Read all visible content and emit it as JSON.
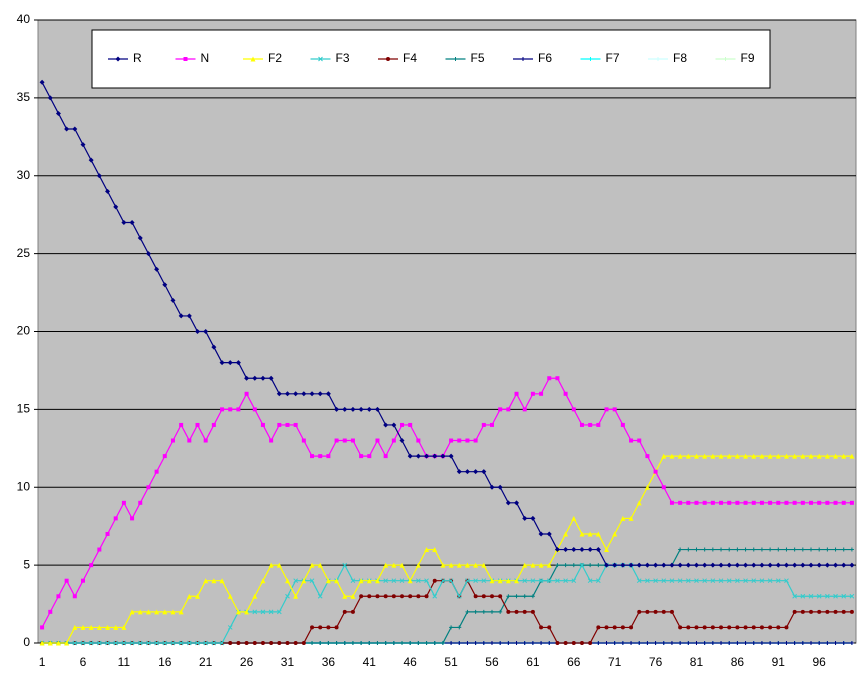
{
  "chart_data": {
    "type": "line",
    "categories": [
      "1",
      null,
      null,
      null,
      null,
      "6",
      null,
      null,
      null,
      null,
      "11",
      null,
      null,
      null,
      null,
      "16",
      null,
      null,
      null,
      null,
      "21",
      null,
      null,
      null,
      null,
      "26",
      null,
      null,
      null,
      null,
      "31",
      null,
      null,
      null,
      null,
      "36",
      null,
      null,
      null,
      null,
      "41",
      null,
      null,
      null,
      null,
      "46",
      null,
      null,
      null,
      null,
      "51",
      null,
      null,
      null,
      null,
      "56",
      null,
      null,
      null,
      null,
      "61",
      null,
      null,
      null,
      null,
      "66",
      null,
      null,
      null,
      null,
      "71",
      null,
      null,
      null,
      null,
      "76",
      null,
      null,
      null,
      null,
      "81",
      null,
      null,
      null,
      null,
      "86",
      null,
      null,
      null,
      null,
      "91",
      null,
      null,
      null,
      null,
      "96",
      null,
      null,
      null,
      null
    ],
    "ylim": [
      0,
      40
    ],
    "yticks": [
      0,
      5,
      10,
      15,
      20,
      25,
      30,
      35,
      40
    ],
    "grid": true,
    "series": [
      {
        "name": "R",
        "color": "#000080",
        "marker": "diamond",
        "values": [
          36,
          35,
          34,
          33,
          33,
          32,
          31,
          30,
          29,
          28,
          27,
          27,
          26,
          25,
          24,
          23,
          22,
          21,
          21,
          20,
          20,
          19,
          18,
          18,
          18,
          17,
          17,
          17,
          17,
          16,
          16,
          16,
          16,
          16,
          16,
          16,
          15,
          15,
          15,
          15,
          15,
          15,
          14,
          14,
          13,
          12,
          12,
          12,
          12,
          12,
          12,
          11,
          11,
          11,
          11,
          10,
          10,
          9,
          9,
          8,
          8,
          7,
          7,
          6,
          6,
          6,
          6,
          6,
          6,
          5,
          5,
          5,
          5,
          5,
          5,
          5,
          5,
          5,
          5,
          5,
          5,
          5,
          5,
          5,
          5,
          5,
          5,
          5,
          5,
          5,
          5,
          5,
          5,
          5,
          5,
          5,
          5,
          5,
          5,
          5
        ]
      },
      {
        "name": "N",
        "color": "#ff00ff",
        "marker": "square",
        "values": [
          1,
          2,
          3,
          4,
          3,
          4,
          5,
          6,
          7,
          8,
          9,
          8,
          9,
          10,
          11,
          12,
          13,
          14,
          13,
          14,
          13,
          14,
          15,
          15,
          15,
          16,
          15,
          14,
          13,
          14,
          14,
          14,
          13,
          12,
          12,
          12,
          13,
          13,
          13,
          12,
          12,
          13,
          12,
          13,
          14,
          14,
          13,
          12,
          12,
          12,
          13,
          13,
          13,
          13,
          14,
          14,
          15,
          15,
          16,
          15,
          16,
          16,
          17,
          17,
          16,
          15,
          14,
          14,
          14,
          15,
          15,
          14,
          13,
          13,
          12,
          11,
          10,
          9,
          9,
          9,
          9,
          9,
          9,
          9,
          9,
          9,
          9,
          9,
          9,
          9,
          9,
          9,
          9,
          9,
          9,
          9,
          9,
          9,
          9,
          9
        ]
      },
      {
        "name": "F2",
        "color": "#ffff00",
        "marker": "triangle",
        "values": [
          0,
          0,
          0,
          0,
          1,
          1,
          1,
          1,
          1,
          1,
          1,
          2,
          2,
          2,
          2,
          2,
          2,
          2,
          3,
          3,
          4,
          4,
          4,
          3,
          2,
          2,
          3,
          4,
          5,
          5,
          4,
          3,
          4,
          5,
          5,
          4,
          4,
          3,
          3,
          4,
          4,
          4,
          5,
          5,
          5,
          4,
          5,
          6,
          6,
          5,
          5,
          5,
          5,
          5,
          5,
          4,
          4,
          4,
          4,
          5,
          5,
          5,
          5,
          6,
          7,
          8,
          7,
          7,
          7,
          6,
          7,
          8,
          8,
          9,
          10,
          11,
          12,
          12,
          12,
          12,
          12,
          12,
          12,
          12,
          12,
          12,
          12,
          12,
          12,
          12,
          12,
          12,
          12,
          12,
          12,
          12,
          12,
          12,
          12,
          12
        ]
      },
      {
        "name": "F3",
        "color": "#33cccc",
        "marker": "x",
        "values": [
          0,
          0,
          0,
          0,
          0,
          0,
          0,
          0,
          0,
          0,
          0,
          0,
          0,
          0,
          0,
          0,
          0,
          0,
          0,
          0,
          0,
          0,
          0,
          1,
          2,
          2,
          2,
          2,
          2,
          2,
          3,
          4,
          4,
          4,
          3,
          4,
          4,
          5,
          4,
          4,
          4,
          4,
          4,
          4,
          4,
          4,
          4,
          4,
          3,
          4,
          4,
          3,
          4,
          4,
          4,
          4,
          4,
          4,
          4,
          4,
          4,
          4,
          4,
          4,
          4,
          4,
          5,
          4,
          4,
          5,
          5,
          5,
          5,
          4,
          4,
          4,
          4,
          4,
          4,
          4,
          4,
          4,
          4,
          4,
          4,
          4,
          4,
          4,
          4,
          4,
          4,
          4,
          3,
          3,
          3,
          3,
          3,
          3,
          3,
          3
        ]
      },
      {
        "name": "F4",
        "color": "#800000",
        "marker": "circle",
        "values": [
          0,
          0,
          0,
          0,
          0,
          0,
          0,
          0,
          0,
          0,
          0,
          0,
          0,
          0,
          0,
          0,
          0,
          0,
          0,
          0,
          0,
          0,
          0,
          0,
          0,
          0,
          0,
          0,
          0,
          0,
          0,
          0,
          0,
          1,
          1,
          1,
          1,
          2,
          2,
          3,
          3,
          3,
          3,
          3,
          3,
          3,
          3,
          3,
          4,
          4,
          4,
          3,
          4,
          3,
          3,
          3,
          3,
          2,
          2,
          2,
          2,
          1,
          1,
          0,
          0,
          0,
          0,
          0,
          1,
          1,
          1,
          1,
          1,
          2,
          2,
          2,
          2,
          2,
          1,
          1,
          1,
          1,
          1,
          1,
          1,
          1,
          1,
          1,
          1,
          1,
          1,
          1,
          2,
          2,
          2,
          2,
          2,
          2,
          2,
          2
        ]
      },
      {
        "name": "F5",
        "color": "#008080",
        "marker": "plus",
        "values": [
          0,
          0,
          0,
          0,
          0,
          0,
          0,
          0,
          0,
          0,
          0,
          0,
          0,
          0,
          0,
          0,
          0,
          0,
          0,
          0,
          0,
          0,
          0,
          0,
          0,
          0,
          0,
          0,
          0,
          0,
          0,
          0,
          0,
          0,
          0,
          0,
          0,
          0,
          0,
          0,
          0,
          0,
          0,
          0,
          0,
          0,
          0,
          0,
          0,
          0,
          1,
          1,
          2,
          2,
          2,
          2,
          2,
          3,
          3,
          3,
          3,
          4,
          4,
          5,
          5,
          5,
          5,
          5,
          5,
          5,
          5,
          5,
          5,
          5,
          5,
          5,
          5,
          5,
          6,
          6,
          6,
          6,
          6,
          6,
          6,
          6,
          6,
          6,
          6,
          6,
          6,
          6,
          6,
          6,
          6,
          6,
          6,
          6,
          6,
          6
        ]
      },
      {
        "name": "F6",
        "color": "#000080",
        "marker": "plus",
        "values": [
          0,
          0,
          0,
          0,
          0,
          0,
          0,
          0,
          0,
          0,
          0,
          0,
          0,
          0,
          0,
          0,
          0,
          0,
          0,
          0,
          0,
          0,
          0,
          0,
          0,
          0,
          0,
          0,
          0,
          0,
          0,
          0,
          0,
          0,
          0,
          0,
          0,
          0,
          0,
          0,
          0,
          0,
          0,
          0,
          0,
          0,
          0,
          0,
          0,
          0,
          0,
          0,
          0,
          0,
          0,
          0,
          0,
          0,
          0,
          0,
          0,
          0,
          0,
          0,
          0,
          0,
          0,
          0,
          0,
          0,
          0,
          0,
          0,
          0,
          0,
          0,
          0,
          0,
          0,
          0,
          0,
          0,
          0,
          0,
          0,
          0,
          0,
          0,
          0,
          0,
          0,
          0,
          0,
          0,
          0,
          0,
          0,
          0,
          0,
          0
        ]
      },
      {
        "name": "F7",
        "color": "#00ffff",
        "marker": "plus",
        "values": [
          0,
          0,
          0,
          0,
          0,
          0,
          0,
          0,
          0,
          0,
          0,
          0,
          0,
          0,
          0,
          0,
          0,
          0,
          0,
          0,
          0,
          0,
          0,
          0,
          0,
          0,
          0,
          0,
          0,
          0,
          0,
          0,
          0,
          0,
          0,
          0,
          0,
          0,
          0,
          0,
          0,
          0,
          0,
          0,
          0,
          0,
          0,
          0,
          0,
          0,
          0,
          0,
          0,
          0,
          0,
          0,
          0,
          0,
          0,
          0,
          0,
          0,
          0,
          0,
          0,
          0,
          0,
          0,
          0,
          0,
          0,
          0,
          0,
          0,
          0,
          0,
          0,
          0,
          0,
          0,
          0,
          0,
          0,
          0,
          0,
          0,
          0,
          0,
          0,
          0,
          0,
          0,
          0,
          0,
          0,
          0,
          0,
          0,
          0,
          0
        ]
      },
      {
        "name": "F8",
        "color": "#ccffff",
        "marker": "plus",
        "values": [
          0,
          0,
          0,
          0,
          0,
          0,
          0,
          0,
          0,
          0,
          0,
          0,
          0,
          0,
          0,
          0,
          0,
          0,
          0,
          0,
          0,
          0,
          0,
          0,
          0,
          0,
          0,
          0,
          0,
          0,
          0,
          0,
          0,
          0,
          0,
          0,
          0,
          0,
          0,
          0,
          0,
          0,
          0,
          0,
          0,
          0,
          0,
          0,
          0,
          0,
          0,
          0,
          0,
          0,
          0,
          0,
          0,
          0,
          0,
          0,
          0,
          0,
          0,
          0,
          0,
          0,
          0,
          0,
          0,
          0,
          0,
          0,
          0,
          0,
          0,
          0,
          0,
          0,
          0,
          0,
          0,
          0,
          0,
          0,
          0,
          0,
          0,
          0,
          0,
          0,
          0,
          0,
          0,
          0,
          0,
          0,
          0,
          0,
          0,
          0
        ]
      },
      {
        "name": "F9",
        "color": "#ccffcc",
        "marker": "plus",
        "values": [
          0,
          0,
          0,
          0,
          0,
          0,
          0,
          0,
          0,
          0,
          0,
          0,
          0,
          0,
          0,
          0,
          0,
          0,
          0,
          0,
          0,
          0,
          0,
          0,
          0,
          0,
          0,
          0,
          0,
          0,
          0,
          0,
          0,
          0,
          0,
          0,
          0,
          0,
          0,
          0,
          0,
          0,
          0,
          0,
          0,
          0,
          0,
          0,
          0,
          0,
          0,
          0,
          0,
          0,
          0,
          0,
          0,
          0,
          0,
          0,
          0,
          0,
          0,
          0,
          0,
          0,
          0,
          0,
          0,
          0,
          0,
          0,
          0,
          0,
          0,
          0,
          0,
          0,
          0,
          0,
          0,
          0,
          0,
          0,
          0,
          0,
          0,
          0,
          0,
          0,
          0,
          0,
          0,
          0,
          0,
          0,
          0,
          0,
          0,
          0
        ]
      }
    ]
  }
}
